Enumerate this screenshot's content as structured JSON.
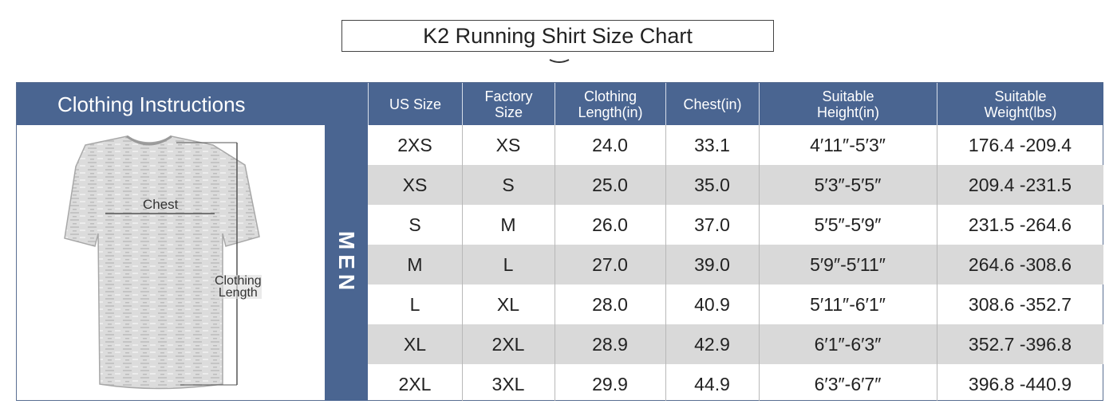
{
  "title": "K2 Running Shirt Size Chart",
  "header": {
    "instructions": "Clothing Instructions",
    "us_size": "US Size",
    "factory_size": [
      "Factory",
      "Size"
    ],
    "clothing_length": [
      "Clothing",
      "Length(in)"
    ],
    "chest": "Chest(in)",
    "height": [
      "Suitable",
      "Height(in)"
    ],
    "weight": [
      "Suitable",
      "Weight(lbs)"
    ]
  },
  "group_label": "MEN",
  "illustration": {
    "chest_label": "Chest",
    "length_label": [
      "Clothing",
      "Length"
    ],
    "icon": "t-shirt-icon"
  },
  "rows": [
    [
      "2XS",
      "XS",
      "24.0",
      "33.1",
      "4′11″-5′3″",
      "176.4 -209.4"
    ],
    [
      "XS",
      "S",
      "25.0",
      "35.0",
      "5′3″-5′5″",
      "209.4 -231.5"
    ],
    [
      "S",
      "M",
      "26.0",
      "37.0",
      "5′5″-5′9″",
      "231.5 -264.6"
    ],
    [
      "M",
      "L",
      "27.0",
      "39.0",
      "5′9″-5′11″",
      "264.6 -308.6"
    ],
    [
      "L",
      "XL",
      "28.0",
      "40.9",
      "5′11″-6′1″",
      "308.6 -352.7"
    ],
    [
      "XL",
      "2XL",
      "28.9",
      "42.9",
      "6′1″-6′3″",
      "352.7 -396.8"
    ],
    [
      "2XL",
      "3XL",
      "29.9",
      "44.9",
      "6′3″-6′7″",
      "396.8 -440.9"
    ]
  ],
  "colors": {
    "header_bg": "#4a6591",
    "row_shade": "#d9d9d9"
  }
}
